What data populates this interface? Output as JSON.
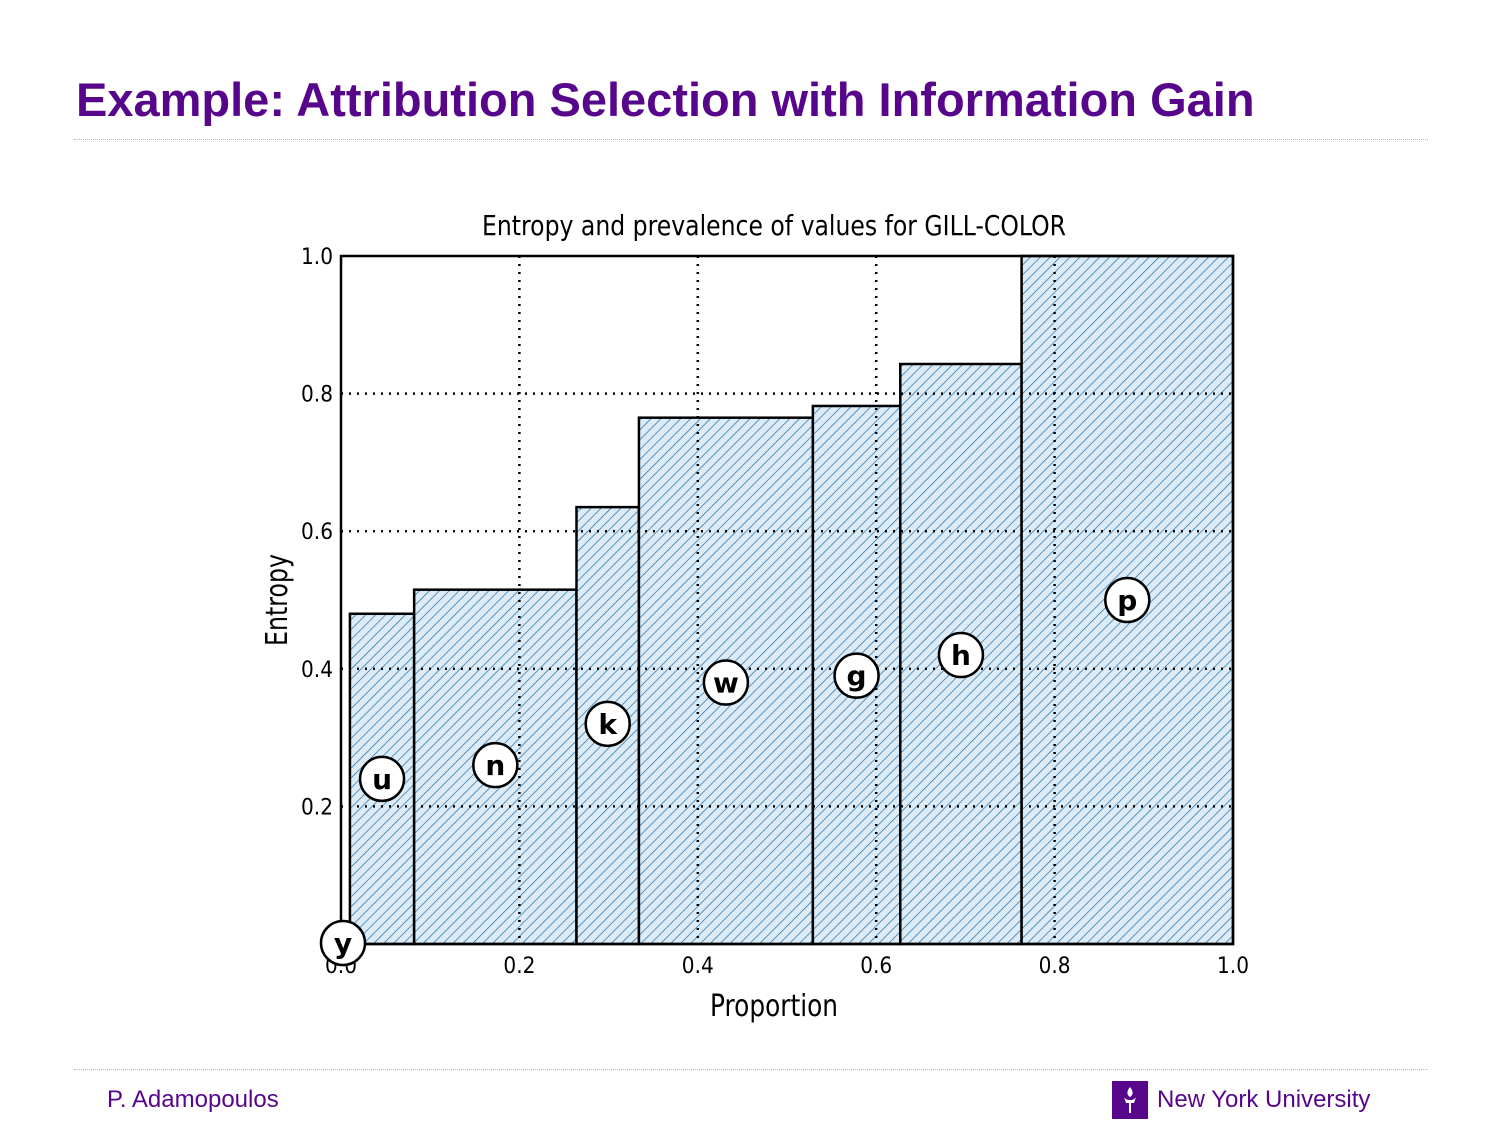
{
  "slide": {
    "title": "Example: Attribution Selection with Information Gain",
    "footer_author": "P. Adamopoulos",
    "footer_org": "New York University",
    "accent_color": "#57068c",
    "logo_icon": "torch-icon"
  },
  "chart_data": {
    "type": "bar",
    "title": "Entropy and prevalence of values for GILL-COLOR",
    "xlabel": "Proportion",
    "ylabel": "Entropy",
    "xlim": [
      0.0,
      1.0
    ],
    "ylim": [
      0.0,
      1.0
    ],
    "x_ticks": [
      "0.0",
      "0.2",
      "0.4",
      "0.6",
      "0.8",
      "1.0"
    ],
    "y_ticks": [
      "0.2",
      "0.4",
      "0.6",
      "0.8",
      "1.0"
    ],
    "grid": true,
    "bar_fill": "#dcebf5",
    "hatch_color": "#1f6fae",
    "bars": [
      {
        "label": "y",
        "x0": 0.0,
        "x1": 0.01,
        "entropy": 0.0,
        "label_y": 0.0
      },
      {
        "label": "u",
        "x0": 0.01,
        "x1": 0.082,
        "entropy": 0.48,
        "label_y": 0.24
      },
      {
        "label": "n",
        "x0": 0.082,
        "x1": 0.264,
        "entropy": 0.515,
        "label_y": 0.26
      },
      {
        "label": "k",
        "x0": 0.264,
        "x1": 0.334,
        "entropy": 0.635,
        "label_y": 0.32
      },
      {
        "label": "w",
        "x0": 0.334,
        "x1": 0.529,
        "entropy": 0.765,
        "label_y": 0.38
      },
      {
        "label": "g",
        "x0": 0.529,
        "x1": 0.627,
        "entropy": 0.782,
        "label_y": 0.39
      },
      {
        "label": "h",
        "x0": 0.627,
        "x1": 0.763,
        "entropy": 0.843,
        "label_y": 0.42
      },
      {
        "label": "p",
        "x0": 0.763,
        "x1": 1.0,
        "entropy": 1.0,
        "label_y": 0.5
      }
    ]
  }
}
